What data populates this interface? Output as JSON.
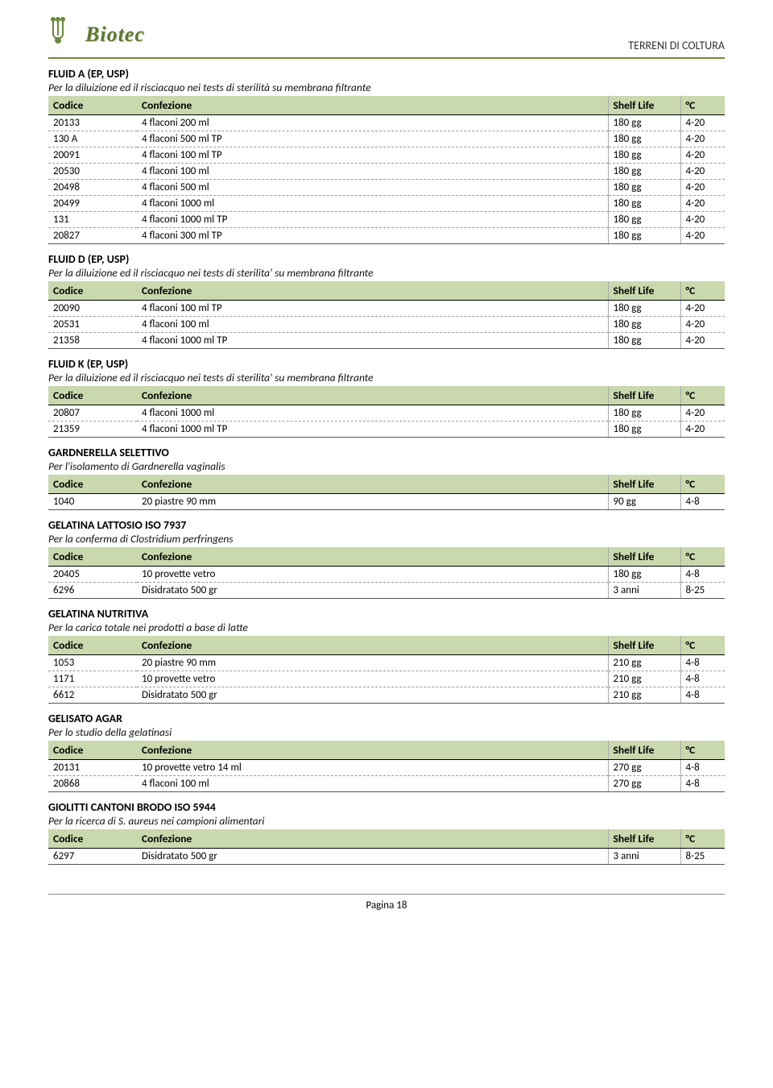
{
  "header": {
    "logo_text": "Biotec",
    "page_label": "TERRENI DI COLTURA"
  },
  "columns": {
    "codice": "Codice",
    "confezione": "Confezione",
    "shelf_life": "Shelf Life",
    "c": "°C"
  },
  "sections": [
    {
      "title": "FLUID A (EP, USP)",
      "desc": "Per la diluizione ed il risciacquo nei tests di sterilità su membrana filtrante",
      "rows": [
        {
          "codice": "20133",
          "conf": "4 flaconi 200 ml",
          "life": "180 gg",
          "c": "4-20"
        },
        {
          "codice": "130 A",
          "conf": "4 flaconi 500 ml TP",
          "life": "180 gg",
          "c": "4-20"
        },
        {
          "codice": "20091",
          "conf": "4 flaconi 100 ml TP",
          "life": "180 gg",
          "c": "4-20"
        },
        {
          "codice": "20530",
          "conf": "4 flaconi 100 ml",
          "life": "180 gg",
          "c": "4-20"
        },
        {
          "codice": "20498",
          "conf": "4 flaconi 500 ml",
          "life": "180 gg",
          "c": "4-20"
        },
        {
          "codice": "20499",
          "conf": "4 flaconi 1000 ml",
          "life": "180 gg",
          "c": "4-20"
        },
        {
          "codice": "131",
          "conf": "4 flaconi 1000 ml TP",
          "life": "180 gg",
          "c": "4-20"
        },
        {
          "codice": "20827",
          "conf": "4 flaconi 300 ml TP",
          "life": "180 gg",
          "c": "4-20"
        }
      ]
    },
    {
      "title": "FLUID D (EP, USP)",
      "desc": "Per la diluizione ed il risciacquo nei tests di sterilita' su membrana filtrante",
      "rows": [
        {
          "codice": "20090",
          "conf": "4 flaconi 100 ml TP",
          "life": "180 gg",
          "c": "4-20"
        },
        {
          "codice": "20531",
          "conf": "4 flaconi 100 ml",
          "life": "180 gg",
          "c": "4-20"
        },
        {
          "codice": "21358",
          "conf": "4 flaconi 1000 ml TP",
          "life": "180 gg",
          "c": "4-20"
        }
      ]
    },
    {
      "title": "FLUID K (EP, USP)",
      "desc": "Per la diluizione ed il risciacquo nei tests di sterilita' su membrana filtrante",
      "rows": [
        {
          "codice": "20807",
          "conf": "4 flaconi 1000 ml",
          "life": "180 gg",
          "c": "4-20"
        },
        {
          "codice": "21359",
          "conf": "4 flaconi 1000 ml TP",
          "life": "180 gg",
          "c": "4-20"
        }
      ]
    },
    {
      "title": "GARDNERELLA SELETTIVO",
      "desc": "Per l'isolamento di Gardnerella vaginalis",
      "rows": [
        {
          "codice": "1040",
          "conf": "20 piastre 90 mm",
          "life": "90 gg",
          "c": "4-8"
        }
      ]
    },
    {
      "title": "GELATINA LATTOSIO ISO 7937",
      "desc": "Per la conferma di Clostridium perfringens",
      "rows": [
        {
          "codice": "20405",
          "conf": "10 provette vetro",
          "life": "180 gg",
          "c": "4-8"
        },
        {
          "codice": "6296",
          "conf": "Disidratato 500 gr",
          "life": "3 anni",
          "c": "8-25"
        }
      ]
    },
    {
      "title": "GELATINA NUTRITIVA",
      "desc": "Per la carica totale nei prodotti a base di latte",
      "rows": [
        {
          "codice": "1053",
          "conf": "20 piastre 90 mm",
          "life": "210 gg",
          "c": "4-8"
        },
        {
          "codice": "1171",
          "conf": "10 provette vetro",
          "life": "210 gg",
          "c": "4-8"
        },
        {
          "codice": "6612",
          "conf": "Disidratato 500 gr",
          "life": "210 gg",
          "c": "4-8"
        }
      ]
    },
    {
      "title": "GELISATO AGAR",
      "desc": "Per lo studio della gelatinasi",
      "rows": [
        {
          "codice": "20131",
          "conf": "10 provette vetro 14 ml",
          "life": "270 gg",
          "c": "4-8"
        },
        {
          "codice": "20868",
          "conf": "4 flaconi 100 ml",
          "life": "270 gg",
          "c": "4-8"
        }
      ]
    },
    {
      "title": "GIOLITTI CANTONI BRODO ISO 5944",
      "desc": "Per la ricerca di S. aureus nei campioni alimentari",
      "rows": [
        {
          "codice": "6297",
          "conf": "Disidratato 500 gr",
          "life": "3 anni",
          "c": "8-25"
        }
      ]
    }
  ],
  "footer": "Pagina 18"
}
